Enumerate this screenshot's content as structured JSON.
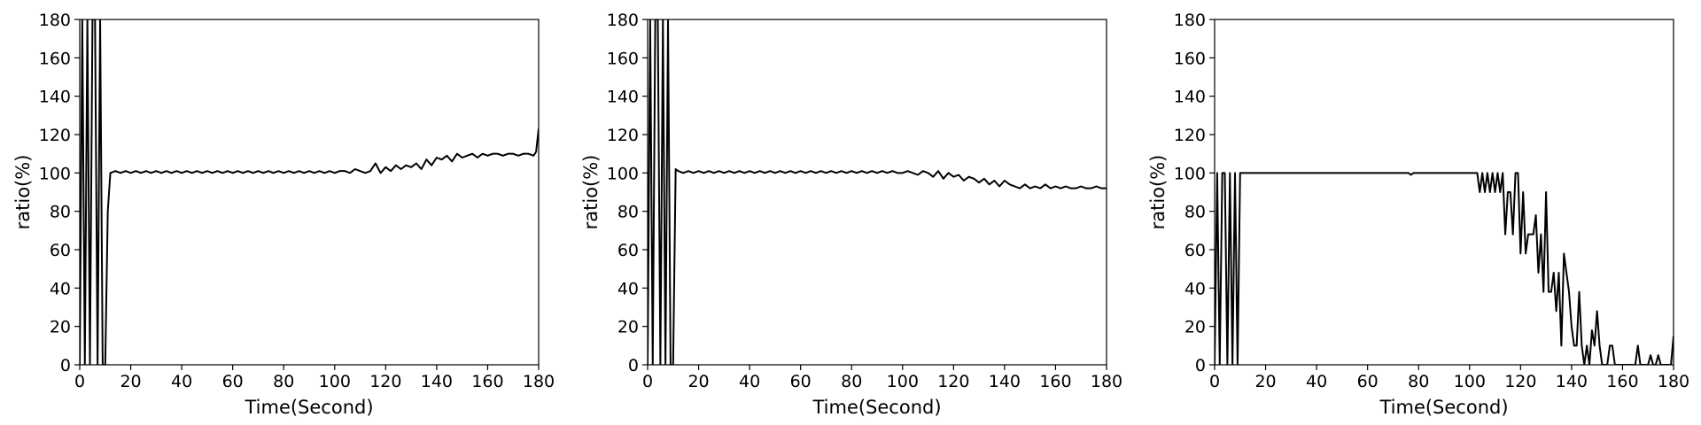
{
  "chart_data": [
    {
      "type": "line",
      "xlabel": "Time(Second)",
      "ylabel": "ratio(%)",
      "xlim": [
        0,
        180
      ],
      "ylim": [
        0,
        180
      ],
      "xticks": [
        0,
        20,
        40,
        60,
        80,
        100,
        120,
        140,
        160,
        180
      ],
      "yticks": [
        0,
        20,
        40,
        60,
        80,
        100,
        120,
        140,
        160,
        180
      ],
      "grid": false,
      "line_color": "#000000",
      "series": [
        {
          "x": [
            0,
            1,
            2,
            3,
            4,
            5,
            6,
            7,
            8,
            9,
            10,
            11,
            12,
            14,
            16,
            18,
            20,
            22,
            24,
            26,
            28,
            30,
            32,
            34,
            36,
            38,
            40,
            42,
            44,
            46,
            48,
            50,
            52,
            54,
            56,
            58,
            60,
            62,
            64,
            66,
            68,
            70,
            72,
            74,
            76,
            78,
            80,
            82,
            84,
            86,
            88,
            90,
            92,
            94,
            96,
            98,
            100,
            102,
            104,
            106,
            108,
            110,
            112,
            114,
            116,
            118,
            120,
            122,
            124,
            126,
            128,
            130,
            132,
            134,
            136,
            138,
            140,
            142,
            144,
            146,
            148,
            150,
            152,
            154,
            156,
            158,
            160,
            162,
            164,
            166,
            168,
            170,
            172,
            174,
            176,
            178,
            179,
            180
          ],
          "y": [
            0,
            180,
            0,
            180,
            0,
            180,
            180,
            0,
            180,
            0,
            0,
            80,
            100,
            101,
            100,
            101,
            100,
            101,
            100,
            101,
            100,
            101,
            100,
            101,
            100,
            101,
            100,
            101,
            100,
            101,
            100,
            101,
            100,
            101,
            100,
            101,
            100,
            101,
            100,
            101,
            100,
            101,
            100,
            101,
            100,
            101,
            100,
            101,
            100,
            101,
            100,
            101,
            100,
            101,
            100,
            101,
            100,
            101,
            101,
            100,
            102,
            101,
            100,
            101,
            105,
            100,
            103,
            101,
            104,
            102,
            104,
            103,
            105,
            102,
            107,
            104,
            108,
            107,
            109,
            106,
            110,
            108,
            109,
            110,
            108,
            110,
            109,
            110,
            110,
            109,
            110,
            110,
            109,
            110,
            110,
            109,
            111,
            123
          ]
        }
      ]
    },
    {
      "type": "line",
      "xlabel": "Time(Second)",
      "ylabel": "ratio(%)",
      "xlim": [
        0,
        180
      ],
      "ylim": [
        0,
        180
      ],
      "xticks": [
        0,
        20,
        40,
        60,
        80,
        100,
        120,
        140,
        160,
        180
      ],
      "yticks": [
        0,
        20,
        40,
        60,
        80,
        100,
        120,
        140,
        160,
        180
      ],
      "grid": false,
      "line_color": "#000000",
      "series": [
        {
          "x": [
            0,
            1,
            2,
            3,
            4,
            5,
            6,
            7,
            8,
            9,
            10,
            11,
            12,
            14,
            16,
            18,
            20,
            22,
            24,
            26,
            28,
            30,
            32,
            34,
            36,
            38,
            40,
            42,
            44,
            46,
            48,
            50,
            52,
            54,
            56,
            58,
            60,
            62,
            64,
            66,
            68,
            70,
            72,
            74,
            76,
            78,
            80,
            82,
            84,
            86,
            88,
            90,
            92,
            94,
            96,
            98,
            100,
            102,
            104,
            106,
            108,
            110,
            112,
            114,
            116,
            118,
            120,
            122,
            124,
            126,
            128,
            130,
            132,
            134,
            136,
            138,
            140,
            142,
            144,
            146,
            148,
            150,
            152,
            154,
            156,
            158,
            160,
            162,
            164,
            166,
            168,
            170,
            172,
            174,
            176,
            178,
            180
          ],
          "y": [
            0,
            180,
            0,
            180,
            180,
            0,
            180,
            0,
            180,
            0,
            0,
            102,
            101,
            100,
            101,
            100,
            101,
            100,
            101,
            100,
            101,
            100,
            101,
            100,
            101,
            100,
            101,
            100,
            101,
            100,
            101,
            100,
            101,
            100,
            101,
            100,
            101,
            100,
            101,
            100,
            101,
            100,
            101,
            100,
            101,
            100,
            101,
            100,
            101,
            100,
            101,
            100,
            101,
            100,
            101,
            100,
            100,
            101,
            100,
            99,
            101,
            100,
            98,
            101,
            97,
            100,
            98,
            99,
            96,
            98,
            97,
            95,
            97,
            94,
            96,
            93,
            96,
            94,
            93,
            92,
            94,
            92,
            93,
            92,
            94,
            92,
            93,
            92,
            93,
            92,
            92,
            93,
            92,
            92,
            93,
            92,
            92
          ]
        }
      ]
    },
    {
      "type": "line",
      "xlabel": "Time(Second)",
      "ylabel": "ratio(%)",
      "xlim": [
        0,
        180
      ],
      "ylim": [
        0,
        180
      ],
      "xticks": [
        0,
        20,
        40,
        60,
        80,
        100,
        120,
        140,
        160,
        180
      ],
      "yticks": [
        0,
        20,
        40,
        60,
        80,
        100,
        120,
        140,
        160,
        180
      ],
      "grid": false,
      "line_color": "#000000",
      "series": [
        {
          "x": [
            0,
            1,
            2,
            3,
            4,
            5,
            6,
            7,
            8,
            9,
            10,
            11,
            12,
            20,
            40,
            60,
            76,
            77,
            78,
            100,
            102,
            103,
            104,
            105,
            106,
            107,
            108,
            109,
            110,
            111,
            112,
            113,
            114,
            115,
            116,
            117,
            118,
            119,
            120,
            121,
            122,
            123,
            124,
            125,
            126,
            127,
            128,
            129,
            130,
            131,
            132,
            133,
            134,
            135,
            136,
            137,
            138,
            139,
            140,
            141,
            142,
            143,
            144,
            145,
            146,
            147,
            148,
            149,
            150,
            151,
            152,
            153,
            154,
            155,
            156,
            157,
            158,
            159,
            160,
            161,
            162,
            163,
            164,
            165,
            166,
            167,
            168,
            169,
            170,
            171,
            172,
            173,
            174,
            175,
            176,
            177,
            178,
            179,
            180
          ],
          "y": [
            0,
            100,
            0,
            100,
            100,
            0,
            100,
            0,
            100,
            0,
            100,
            100,
            100,
            100,
            100,
            100,
            100,
            99,
            100,
            100,
            100,
            100,
            90,
            100,
            90,
            100,
            90,
            100,
            90,
            100,
            90,
            100,
            68,
            90,
            90,
            68,
            100,
            100,
            58,
            90,
            58,
            68,
            68,
            68,
            78,
            48,
            68,
            38,
            90,
            38,
            38,
            48,
            28,
            48,
            10,
            58,
            48,
            38,
            20,
            10,
            10,
            38,
            10,
            0,
            10,
            0,
            18,
            10,
            28,
            10,
            0,
            0,
            0,
            10,
            10,
            0,
            0,
            0,
            0,
            0,
            0,
            0,
            0,
            0,
            10,
            0,
            0,
            0,
            0,
            5,
            0,
            0,
            5,
            0,
            0,
            0,
            0,
            0,
            15
          ]
        }
      ]
    }
  ]
}
